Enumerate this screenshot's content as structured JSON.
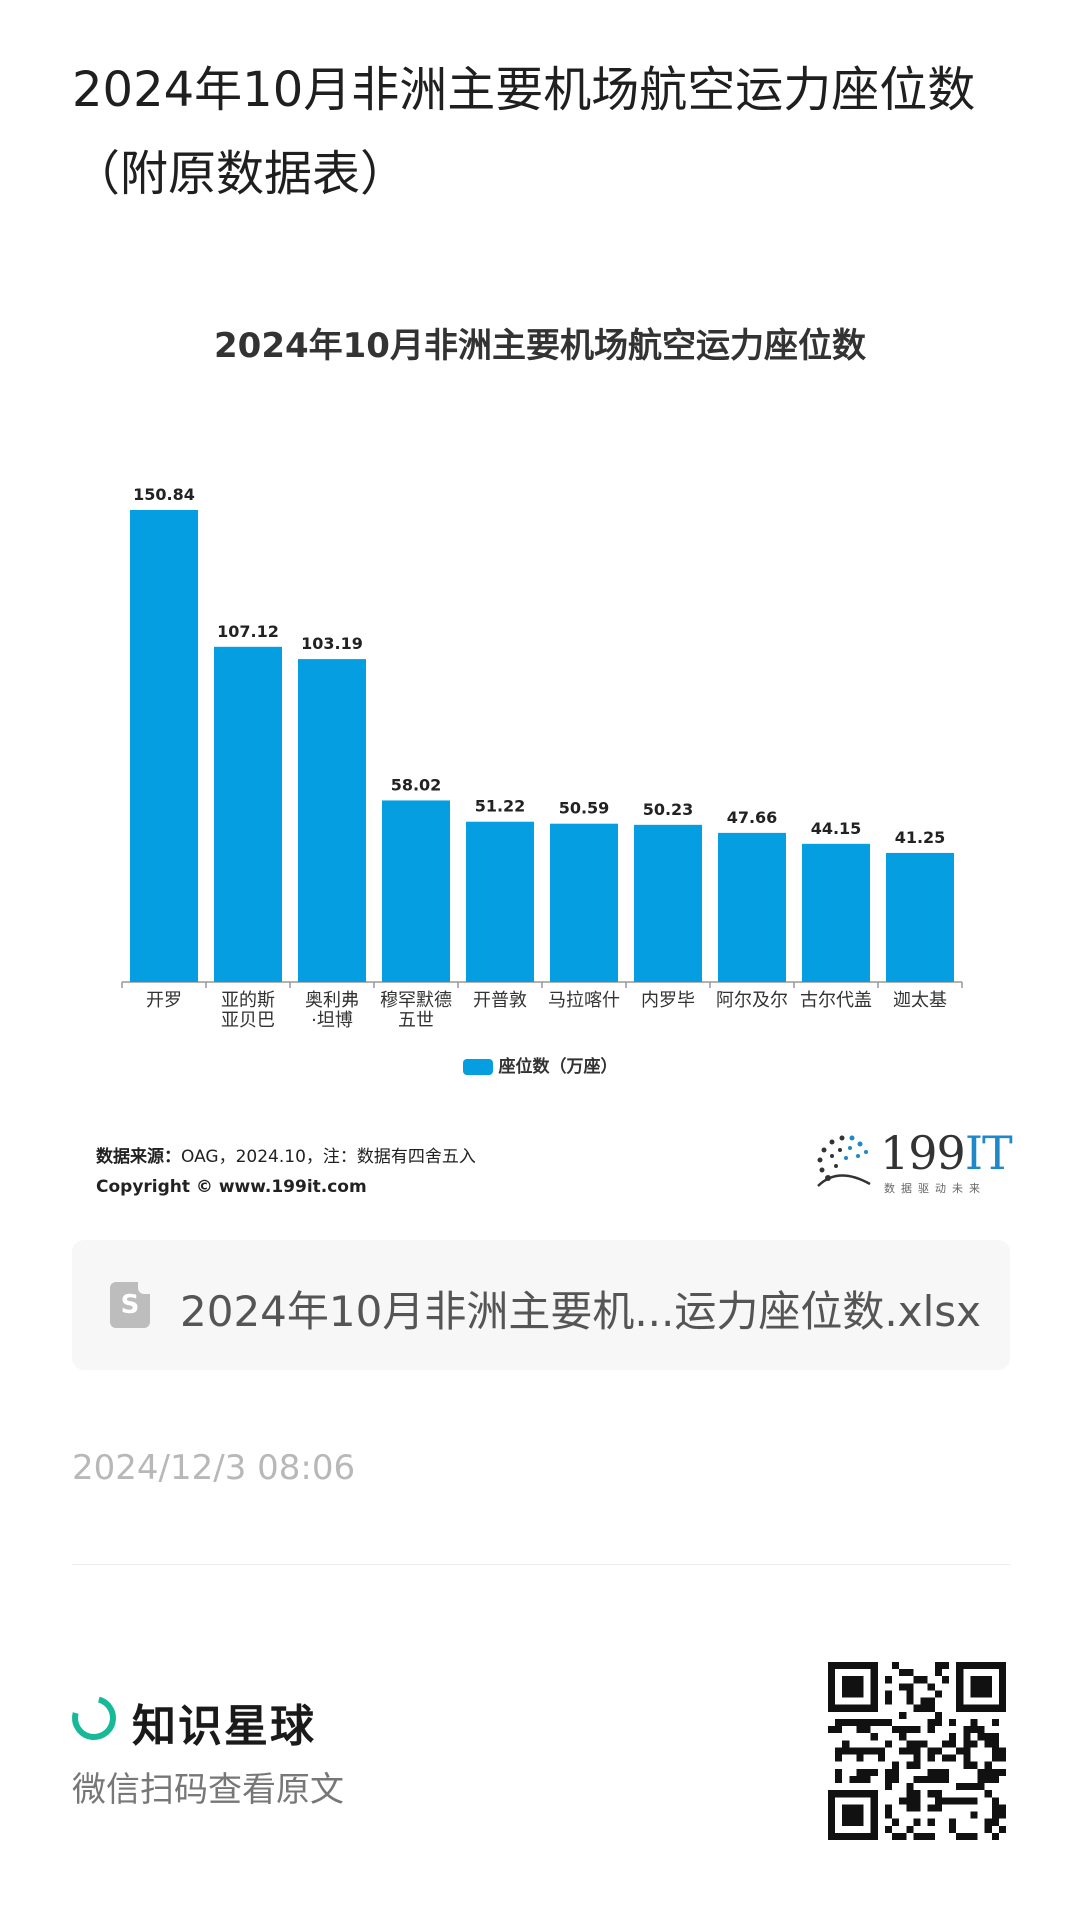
{
  "page": {
    "title": "2024年10月非洲主要机场航空运力座位数（附原数据表）"
  },
  "chart_data": {
    "type": "bar",
    "title": "2024年10月非洲主要机场航空运力座位数",
    "categories": [
      "开罗",
      "亚的斯\n亚贝巴",
      "奥利弗\n·坦博",
      "穆罕默德\n五世",
      "开普敦",
      "马拉喀什",
      "内罗毕",
      "阿尔及尔",
      "古尔代盖",
      "迦太基"
    ],
    "series": [
      {
        "name": "座位数（万座）",
        "values": [
          150.84,
          107.12,
          103.19,
          58.02,
          51.22,
          50.59,
          50.23,
          47.66,
          44.15,
          41.25
        ]
      }
    ],
    "ylim": [
      0,
      150.84
    ],
    "grid": false,
    "legend": "bottom",
    "color": "#049ee1"
  },
  "source": {
    "label": "数据来源：",
    "text": "OAG，2024.10，注：数据有四舍五入",
    "copyright": "Copyright ©  www.199it.com"
  },
  "brand": {
    "name_num": "199",
    "name_it": "IT",
    "tagline": "数据驱动未来"
  },
  "file": {
    "icon": "spreadsheet-file-icon",
    "icon_letter": "S",
    "name": "2024年10月非洲主要机...运力座位数.xlsx"
  },
  "meta": {
    "timestamp": "2024/12/3 08:06"
  },
  "footer": {
    "app_name": "知识星球",
    "hint": "微信扫码查看原文"
  }
}
